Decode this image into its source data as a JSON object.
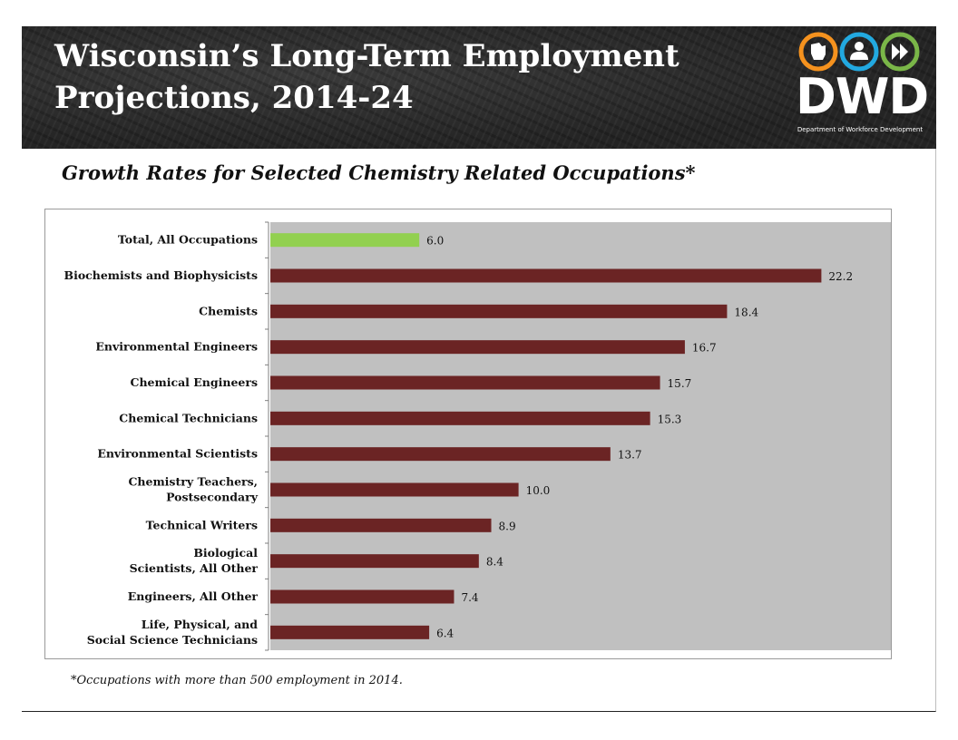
{
  "header": {
    "title": "Wisconsin’s Long-Term Employment Projections, 2014-24",
    "logo_text": "DWD",
    "logo_tagline": "Department of Workforce Development"
  },
  "colors": {
    "header_bg": "#2b2b2b",
    "logo_orange": "#f5921e",
    "logo_blue": "#22a9e0",
    "logo_green": "#7ab648",
    "plot_bg": "#c0c0c0",
    "bar_highlight": "#92d050",
    "bar_default": "#6b2424"
  },
  "icons": [
    "wisconsin-state-icon",
    "person-icon",
    "fast-forward-icon"
  ],
  "chart_data": {
    "type": "bar",
    "orientation": "horizontal",
    "title": "Growth Rates for Selected Chemistry Related Occupations*",
    "xlabel": "",
    "ylabel": "",
    "xlim": [
      0,
      25
    ],
    "grid": false,
    "legend": "none",
    "categories": [
      "Total, All Occupations",
      "Biochemists and Biophysicists",
      "Chemists",
      "Environmental Engineers",
      "Chemical Engineers",
      "Chemical Technicians",
      "Environmental Scientists",
      "Chemistry Teachers, Postsecondary",
      "Technical Writers",
      "Biological Scientists, All Other",
      "Engineers, All Other",
      "Life, Physical, and Social Science Technicians"
    ],
    "values": [
      6.0,
      22.2,
      18.4,
      16.7,
      15.7,
      15.3,
      13.7,
      10.0,
      8.9,
      8.4,
      7.4,
      6.4
    ],
    "data_labels": [
      "6.0",
      "22.2",
      "18.4",
      "16.7",
      "15.7",
      "15.3",
      "13.7",
      "10.0",
      "8.9",
      "8.4",
      "7.4",
      "6.4"
    ],
    "highlight_category": "Total, All Occupations"
  },
  "footnote": "*Occupations with more than 500 employment in 2014."
}
